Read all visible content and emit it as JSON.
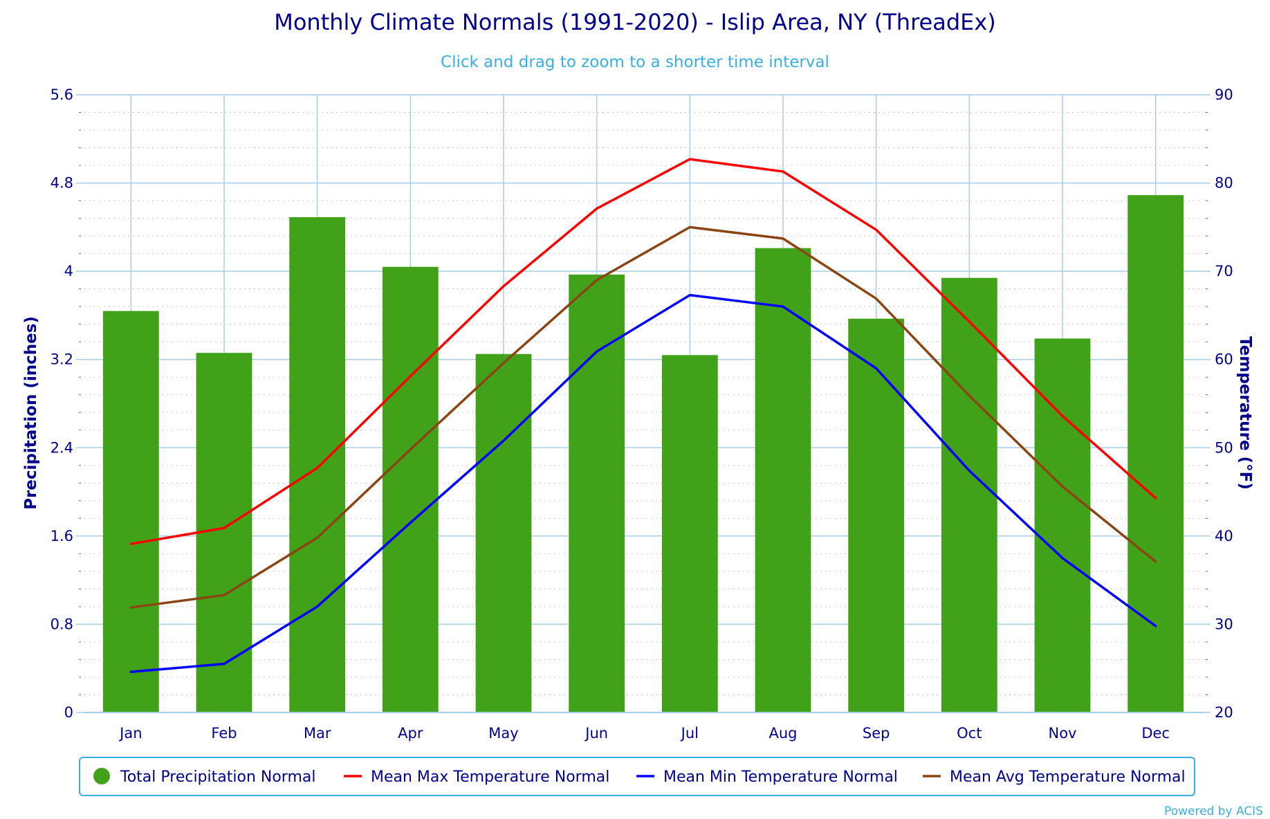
{
  "chart_data": {
    "type": "bar",
    "title": "Monthly Climate Normals (1991-2020) - Islip Area, NY (ThreadEx)",
    "subtitle": "Click and drag to zoom to a shorter time interval",
    "credits": "Powered by ACIS",
    "categories": [
      "Jan",
      "Feb",
      "Mar",
      "Apr",
      "May",
      "Jun",
      "Jul",
      "Aug",
      "Sep",
      "Oct",
      "Nov",
      "Dec"
    ],
    "y_left": {
      "label": "Precipitation (inches)",
      "min": 0,
      "max": 5.6,
      "ticks": [
        "0",
        "0.8",
        "1.6",
        "2.4",
        "3.2",
        "4",
        "4.8",
        "5.6"
      ]
    },
    "y_right": {
      "label": "Temperature (°F)",
      "min": 20,
      "max": 90,
      "ticks": [
        "20",
        "30",
        "40",
        "50",
        "60",
        "70",
        "80",
        "90"
      ]
    },
    "grid": true,
    "legend_position": "bottom",
    "series": [
      {
        "name": "Total Precipitation Normal",
        "type": "bar",
        "axis": "left",
        "color": "#41a21a",
        "values": [
          3.64,
          3.26,
          4.49,
          4.04,
          3.25,
          3.97,
          3.24,
          4.21,
          3.57,
          3.94,
          3.39,
          4.69
        ]
      },
      {
        "name": "Mean Max Temperature Normal",
        "type": "line",
        "axis": "right",
        "color": "#ff0000",
        "values": [
          39.1,
          40.9,
          47.7,
          58.1,
          68.3,
          77.1,
          82.7,
          81.3,
          74.7,
          64.3,
          53.6,
          44.3
        ]
      },
      {
        "name": "Mean Min Temperature Normal",
        "type": "line",
        "axis": "right",
        "color": "#0000ff",
        "values": [
          24.6,
          25.5,
          32.0,
          41.5,
          50.8,
          60.9,
          67.3,
          66.0,
          59.0,
          47.4,
          37.5,
          29.8
        ]
      },
      {
        "name": "Mean Avg Temperature Normal",
        "type": "line",
        "axis": "right",
        "color": "#8b4513",
        "values": [
          31.9,
          33.3,
          39.8,
          49.8,
          59.6,
          69.0,
          75.0,
          73.7,
          66.9,
          55.9,
          45.6,
          37.1
        ]
      }
    ]
  }
}
